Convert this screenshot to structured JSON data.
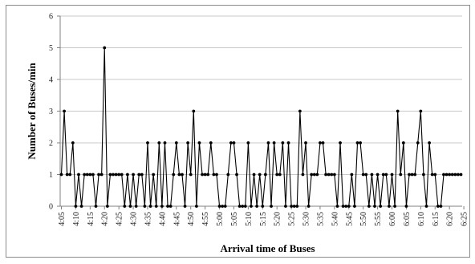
{
  "chart_data": {
    "type": "line",
    "title": "",
    "xlabel": "Arrival time of Buses",
    "ylabel": "Number of Buses/min",
    "ylim": [
      0,
      6
    ],
    "yticks": [
      0,
      1,
      2,
      3,
      4,
      5,
      6
    ],
    "grid": "horizontal",
    "legend": "none",
    "colors": {
      "line": "#000000",
      "grid": "#c8c8c8",
      "axis": "#808080"
    },
    "xtick_labels": [
      "4:05",
      "4:10",
      "4:15",
      "4:20",
      "4:25",
      "4:30",
      "4:35",
      "4:40",
      "4:45",
      "4:50",
      "4:55",
      "5:00",
      "5:05",
      "5:10",
      "5:15",
      "5:20",
      "5:25",
      "5:30",
      "5:35",
      "5:40",
      "5:45",
      "5:50",
      "5:55",
      "6:00",
      "6:05",
      "6:10",
      "6:15",
      "6:20",
      "6:25"
    ],
    "series": [
      {
        "values": [
          1,
          3,
          1,
          1,
          2,
          0,
          1,
          0,
          1,
          1,
          1,
          1,
          0,
          1,
          1,
          5,
          0,
          1,
          1,
          1,
          1,
          1,
          0,
          1,
          0,
          1,
          0,
          1,
          1,
          0,
          2,
          0,
          1,
          0,
          2,
          0,
          2,
          0,
          0,
          1,
          2,
          1,
          1,
          0,
          2,
          1,
          3,
          0,
          2,
          1,
          1,
          1,
          2,
          1,
          1,
          0,
          0,
          0,
          1,
          2,
          2,
          1,
          0,
          0,
          0,
          2,
          0,
          1,
          0,
          1,
          0,
          1,
          2,
          0,
          2,
          1,
          1,
          2,
          0,
          2,
          0,
          0,
          0,
          3,
          1,
          2,
          0,
          1,
          1,
          1,
          2,
          2,
          1,
          1,
          1,
          1,
          0,
          2,
          0,
          0,
          0,
          1,
          0,
          2,
          2,
          1,
          1,
          0,
          1,
          0,
          1,
          0,
          1,
          1,
          0,
          1,
          0,
          3,
          1,
          2,
          0,
          1,
          1,
          1,
          2,
          3,
          1,
          0,
          2,
          1,
          1,
          0,
          0,
          1,
          1,
          1,
          1,
          1,
          1,
          1
        ]
      }
    ]
  }
}
